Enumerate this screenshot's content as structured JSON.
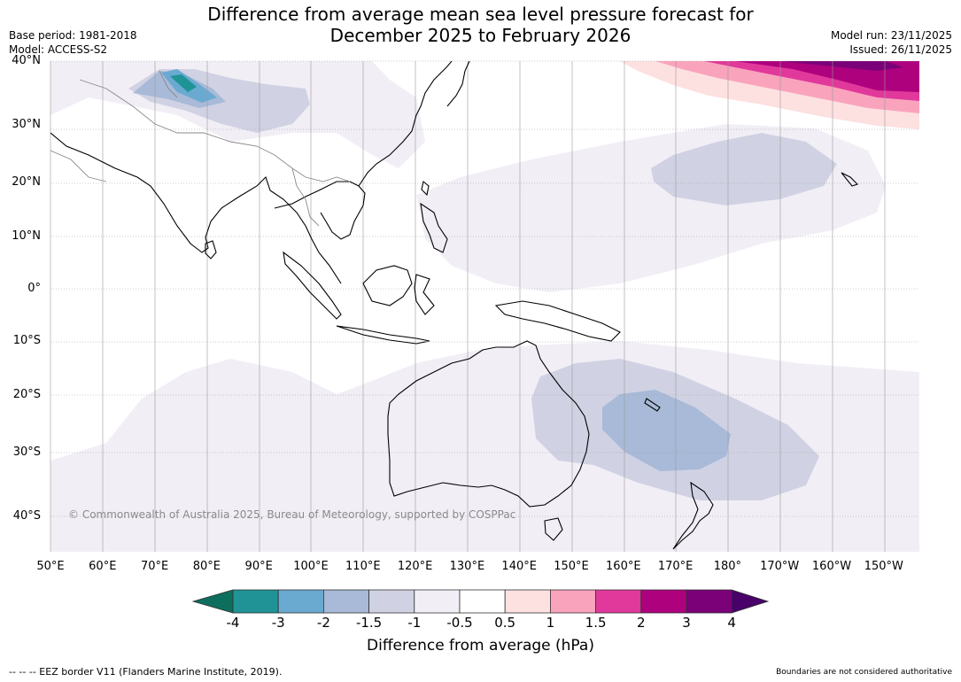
{
  "title": {
    "line1": "Difference from average mean sea level pressure forecast for",
    "line2": "December 2025 to February 2026"
  },
  "meta_left": {
    "base_period": "Base period: 1981-2018",
    "model": "Model: ACCESS-S2"
  },
  "meta_right": {
    "model_run": "Model run: 23/11/2025",
    "issued": "Issued: 26/11/2025"
  },
  "map": {
    "lat_labels": [
      "40°N",
      "30°N",
      "20°N",
      "10°N",
      "0°",
      "10°S",
      "20°S",
      "30°S",
      "40°S"
    ],
    "lon_labels": [
      "50°E",
      "60°E",
      "70°E",
      "80°E",
      "90°E",
      "100°E",
      "110°E",
      "120°E",
      "130°E",
      "140°E",
      "150°E",
      "160°E",
      "170°E",
      "180°",
      "170°W",
      "160°W",
      "150°W"
    ],
    "copyright": "© Commonwealth of Australia 2025, Bureau of Meteorology, supported by COSPPac"
  },
  "colorbar": {
    "ticks": [
      "-4",
      "-3",
      "-2",
      "-1.5",
      "-1",
      "-0.5",
      "0.5",
      "1",
      "1.5",
      "2",
      "3",
      "4"
    ],
    "colors": {
      "below_-4": "#0d6e5e",
      "-4_-3": "#1f9396",
      "-3_-2": "#6aaad1",
      "-2_-1.5": "#a8bad8",
      "-1.5_-1": "#d0d2e3",
      "-1_-0.5": "#f2eef6",
      "-0.5_0.5": "#ffffff",
      "0.5_1": "#fde0e0",
      "1_1.5": "#f9a3bd",
      "1.5_2": "#e0399b",
      "2_3": "#ae017e",
      "3_4": "#7a0177",
      "above_4": "#49006a"
    },
    "label": "Difference from average (hPa)"
  },
  "footer": {
    "eez_note": "--  --  -- EEZ border V11 (Flanders Marine Institute, 2019).",
    "boundary_note": "Boundaries are not considered authoritative"
  }
}
